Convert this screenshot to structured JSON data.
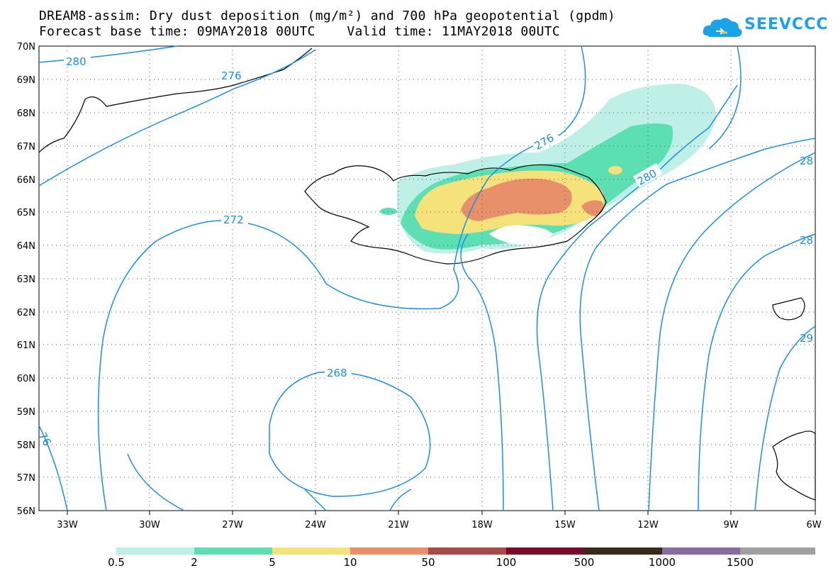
{
  "title": {
    "line1": "DREAM8-assim: Dry dust deposition (mg/m²) and 700 hPa geopotential (gpdm)",
    "line2": "Forecast base time: 09MAY2018 00UTC    Valid time: 11MAY2018 00UTC"
  },
  "logo": {
    "text": "SEEVCCC",
    "icon": "cloud-logo-icon"
  },
  "map": {
    "latitude_labels": [
      "70N",
      "69N",
      "68N",
      "67N",
      "66N",
      "65N",
      "64N",
      "63N",
      "62N",
      "61N",
      "60N",
      "59N",
      "58N",
      "57N",
      "56N"
    ],
    "longitude_labels": [
      "33W",
      "30W",
      "27W",
      "24W",
      "21W",
      "18W",
      "15W",
      "12W",
      "9W",
      "6W"
    ],
    "contour_labels": [
      "280",
      "276",
      "272",
      "268",
      "276",
      "280",
      "28",
      "28",
      "29",
      "76"
    ]
  },
  "legend": {
    "thresholds": [
      "0.5",
      "2",
      "5",
      "10",
      "50",
      "100",
      "500",
      "1000",
      "1500"
    ],
    "colors": [
      "#bff0e8",
      "#5ddfb4",
      "#f5e27a",
      "#e8906a",
      "#a84a48",
      "#7a0a2a",
      "#3a2a1a",
      "#8a6aa0",
      "#a0a0a0"
    ]
  },
  "colors": {
    "contour": "#1a8fe0",
    "coastline": "#000000",
    "grid": "#555555"
  }
}
